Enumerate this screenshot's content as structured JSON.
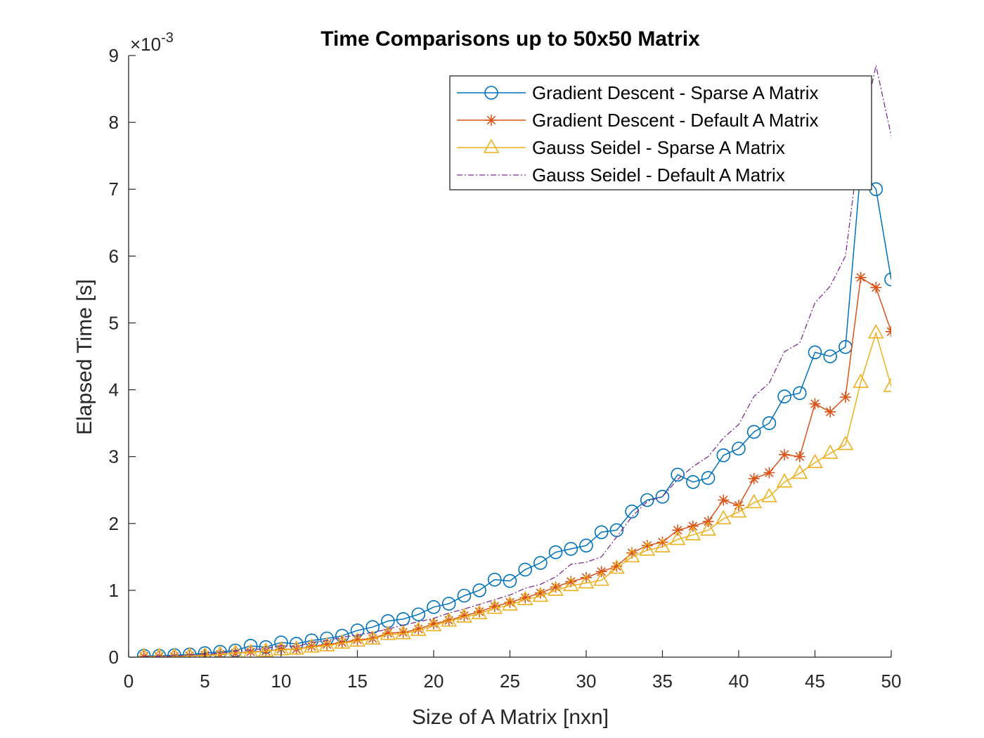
{
  "chart_data": {
    "type": "line",
    "title": "Time Comparisons up to 50x50 Matrix",
    "xlabel": "Size of A Matrix [nxn]",
    "ylabel": "Elapsed Time [s]",
    "y_exponent_label": "×10",
    "y_exponent_power": "-3",
    "xlim": [
      0,
      50
    ],
    "ylim": [
      0,
      9
    ],
    "xticks": [
      0,
      5,
      10,
      15,
      20,
      25,
      30,
      35,
      40,
      45,
      50
    ],
    "yticks": [
      0,
      1,
      2,
      3,
      4,
      5,
      6,
      7,
      8,
      9
    ],
    "xtick_labels": [
      "0",
      "5",
      "10",
      "15",
      "20",
      "25",
      "30",
      "35",
      "40",
      "45",
      "50"
    ],
    "ytick_labels": [
      "0",
      "1",
      "2",
      "3",
      "4",
      "5",
      "6",
      "7",
      "8",
      "9"
    ],
    "grid": false,
    "legend_position": "top-right",
    "x": [
      1,
      2,
      3,
      4,
      5,
      6,
      7,
      8,
      9,
      10,
      11,
      12,
      13,
      14,
      15,
      16,
      17,
      18,
      19,
      20,
      21,
      22,
      23,
      24,
      25,
      26,
      27,
      28,
      29,
      30,
      31,
      32,
      33,
      34,
      35,
      36,
      37,
      38,
      39,
      40,
      41,
      42,
      43,
      44,
      45,
      46,
      47,
      48,
      49,
      50
    ],
    "series": [
      {
        "name": "Gradient Descent - Sparse A Matrix",
        "color": "#0072BD",
        "marker": "circle",
        "line": "solid",
        "values": [
          0.02,
          0.02,
          0.03,
          0.04,
          0.06,
          0.08,
          0.1,
          0.17,
          0.15,
          0.22,
          0.2,
          0.25,
          0.28,
          0.32,
          0.4,
          0.45,
          0.54,
          0.57,
          0.64,
          0.75,
          0.8,
          0.92,
          1.0,
          1.16,
          1.14,
          1.31,
          1.41,
          1.57,
          1.62,
          1.67,
          1.87,
          1.9,
          2.18,
          2.35,
          2.4,
          2.73,
          2.62,
          2.68,
          3.02,
          3.12,
          3.37,
          3.5,
          3.9,
          3.95,
          4.56,
          4.5,
          4.64,
          7.3,
          7.0,
          5.65
        ]
      },
      {
        "name": "Gradient Descent - Default A Matrix",
        "color": "#D95319",
        "marker": "star",
        "line": "solid",
        "values": [
          0.01,
          0.01,
          0.01,
          0.02,
          0.03,
          0.04,
          0.06,
          0.08,
          0.09,
          0.12,
          0.12,
          0.16,
          0.19,
          0.22,
          0.26,
          0.28,
          0.36,
          0.37,
          0.42,
          0.5,
          0.55,
          0.62,
          0.68,
          0.76,
          0.82,
          0.89,
          0.96,
          1.05,
          1.13,
          1.19,
          1.28,
          1.36,
          1.56,
          1.67,
          1.72,
          1.9,
          1.96,
          2.03,
          2.35,
          2.27,
          2.67,
          2.76,
          3.03,
          3.0,
          3.79,
          3.67,
          3.89,
          5.68,
          5.53,
          4.87
        ]
      },
      {
        "name": "Gauss Seidel - Sparse A Matrix",
        "color": "#EDB120",
        "marker": "triangle",
        "line": "solid",
        "values": [
          0.01,
          0.01,
          0.01,
          0.02,
          0.02,
          0.04,
          0.06,
          0.07,
          0.09,
          0.11,
          0.12,
          0.15,
          0.17,
          0.21,
          0.24,
          0.27,
          0.34,
          0.35,
          0.4,
          0.47,
          0.54,
          0.6,
          0.65,
          0.73,
          0.78,
          0.86,
          0.91,
          1.0,
          1.07,
          1.11,
          1.15,
          1.33,
          1.5,
          1.6,
          1.65,
          1.76,
          1.83,
          1.9,
          2.07,
          2.17,
          2.31,
          2.4,
          2.62,
          2.75,
          2.91,
          3.05,
          3.18,
          4.11,
          4.85,
          4.05
        ]
      },
      {
        "name": "Gauss Seidel - Default A Matrix",
        "color": "#7E2F8E",
        "marker": "none",
        "line": "dashdot",
        "values": [
          0.01,
          0.01,
          0.02,
          0.03,
          0.05,
          0.06,
          0.09,
          0.11,
          0.13,
          0.17,
          0.16,
          0.22,
          0.25,
          0.3,
          0.33,
          0.37,
          0.42,
          0.48,
          0.53,
          0.58,
          0.66,
          0.72,
          0.79,
          0.86,
          0.93,
          1.03,
          1.09,
          1.2,
          1.39,
          1.42,
          1.5,
          1.8,
          2.1,
          2.33,
          2.4,
          2.66,
          2.85,
          3.0,
          3.28,
          3.48,
          3.9,
          4.1,
          4.57,
          4.7,
          5.3,
          5.55,
          6.0,
          7.8,
          8.85,
          7.8
        ]
      }
    ]
  }
}
